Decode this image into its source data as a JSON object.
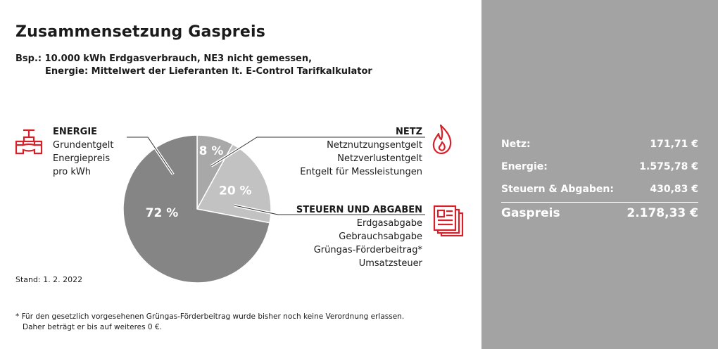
{
  "title": "Zusammensetzung Gaspreis",
  "subtitle_line1": "Bsp.: 10.000 kWh Erdgasverbrauch, NE3 nicht gemessen,",
  "subtitle_line2": "Energie: Mittelwert der Lieferanten lt. E-Control Tarifkalkulator",
  "energie": {
    "heading": "ENERGIE",
    "lines": [
      "Grundentgelt",
      "Energiepreis",
      "pro kWh"
    ]
  },
  "netz": {
    "heading": "NETZ",
    "lines": [
      "Netznutzungsentgelt",
      "Netzverlustentgelt",
      "Entgelt für Messleistungen"
    ]
  },
  "steuern": {
    "heading": "STEUERN UND ABGABEN",
    "lines": [
      "Erdgasabgabe",
      "Gebrauchsabgabe",
      "Grüngas-Förderbeitrag*",
      "Umsatzsteuer"
    ]
  },
  "stand": "Stand: 1. 2. 2022",
  "footnote_line1": "* Für den gesetzlich vorgesehenen Grüngas-Förderbeitrag wurde bisher noch keine Verordnung erlassen.",
  "footnote_line2": "Daher beträgt er bis auf weiteres 0 €.",
  "summary": {
    "netz_label": "Netz:",
    "netz_value": "171,71 €",
    "energie_label": "Energie:",
    "energie_value": "1.575,78 €",
    "steuern_label": "Steuern & Abgaben:",
    "steuern_value": "430,83 €",
    "total_label": "Gaspreis",
    "total_value": "2.178,33 €"
  },
  "colors": {
    "netz": "#a8a8a8",
    "steuern": "#c2c2c2",
    "energie": "#858585",
    "accent": "#d6202a",
    "panel": "#a3a3a3"
  },
  "icons": {
    "energie": "valve-icon",
    "netz": "flame-icon",
    "steuern": "document-icon"
  },
  "chart_data": {
    "type": "pie",
    "categories": [
      "Netz",
      "Steuern und Abgaben",
      "Energie"
    ],
    "values": [
      8,
      20,
      72
    ],
    "labels": [
      "8 %",
      "20 %",
      "72 %"
    ],
    "legend": "none"
  }
}
